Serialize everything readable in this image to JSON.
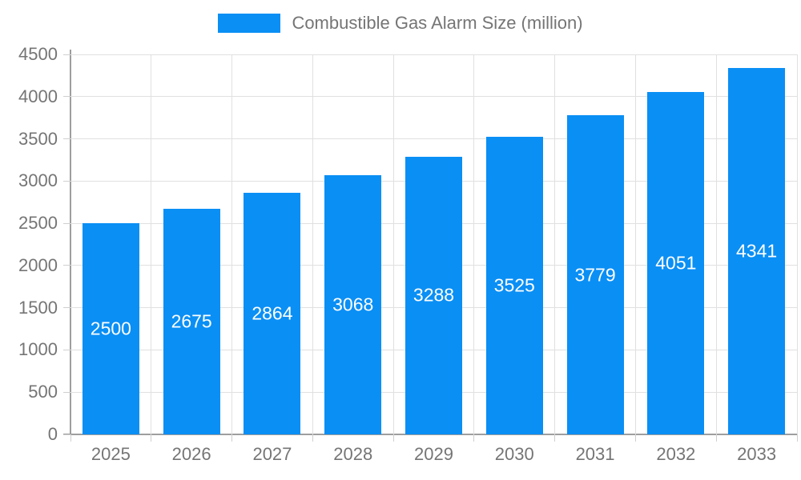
{
  "page": {
    "background": "#ffffff"
  },
  "legend": {
    "label": "Combustible Gas Alarm Size (million)",
    "swatch_color": "#0A8FF5"
  },
  "chart_data": {
    "type": "bar",
    "title": "Combustible Gas Alarm Size (million)",
    "categories": [
      "2025",
      "2026",
      "2027",
      "2028",
      "2029",
      "2030",
      "2031",
      "2032",
      "2033"
    ],
    "series": [
      {
        "name": "Combustible Gas Alarm Size (million)",
        "values": [
          2500,
          2675,
          2864,
          3068,
          3288,
          3525,
          3779,
          4051,
          4341
        ]
      }
    ],
    "value_labels": [
      "2500",
      "2675",
      "2864",
      "3068",
      "3288",
      "3525",
      "3779",
      "4051",
      "4341"
    ],
    "xlabel": "",
    "ylabel": "",
    "ylim": [
      0,
      4500
    ],
    "y_ticks": [
      0,
      500,
      1000,
      1500,
      2000,
      2500,
      3000,
      3500,
      4000,
      4500
    ],
    "grid": true,
    "legend_position": "top",
    "colors": {
      "bar": "#0A8FF5",
      "axis_text": "#757575",
      "bar_label": "#ffffff",
      "gridline": "#e0e0e0",
      "axis_line": "#9e9e9e",
      "tick": "#cfcfcf"
    }
  }
}
